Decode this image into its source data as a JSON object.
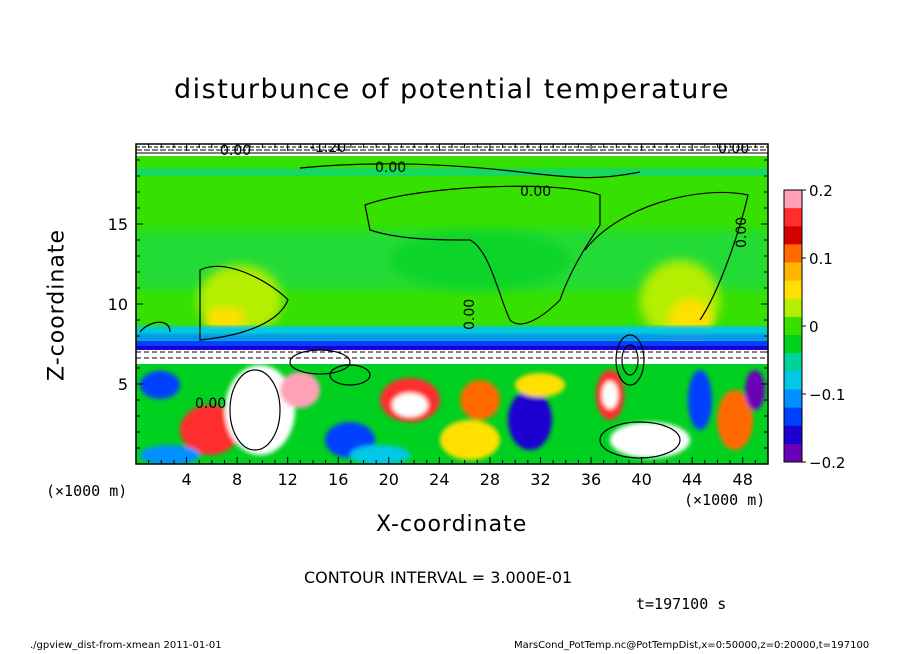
{
  "chart_data": {
    "type": "heatmap",
    "title": "disturbunce of potential temperature",
    "xlabel": "X-coordinate",
    "ylabel": "Z-coordinate",
    "x_unit": "(×1000 m)",
    "xlim": [
      0,
      50
    ],
    "ylim": [
      0,
      20
    ],
    "x_ticks": [
      4,
      8,
      12,
      16,
      20,
      24,
      28,
      32,
      36,
      40,
      44,
      48
    ],
    "y_ticks": [
      5,
      10,
      15
    ],
    "colorbar": {
      "range": [
        -0.2,
        0.2
      ],
      "labels": [
        "0.2",
        "0.1",
        "0",
        "−0.1",
        "−0.2"
      ],
      "label_values": [
        0.2,
        0.1,
        0,
        -0.1,
        -0.2
      ],
      "colors": [
        "#ffa0b8",
        "#ff2d2d",
        "#d40000",
        "#ff6a00",
        "#ffb400",
        "#ffe000",
        "#b4ee00",
        "#36e000",
        "#00d020",
        "#00d29a",
        "#00c8e6",
        "#0090ff",
        "#0040ff",
        "#1a00d2",
        "#6a00b8"
      ]
    },
    "contour_labels": [
      "0.00",
      "0.00",
      "0.00",
      "0.00",
      "0.00",
      "0.00",
      "0.00",
      "-1.20"
    ],
    "contour_interval_text": "CONTOUR INTERVAL = 3.000E-01",
    "time_text": "t=197100 s"
  },
  "footer": {
    "left": "./gpview_dist-from-xmean  2011-01-01",
    "right": "MarsCond_PotTemp.nc@PotTempDist,x=0:50000,z=0:20000,t=197100"
  }
}
